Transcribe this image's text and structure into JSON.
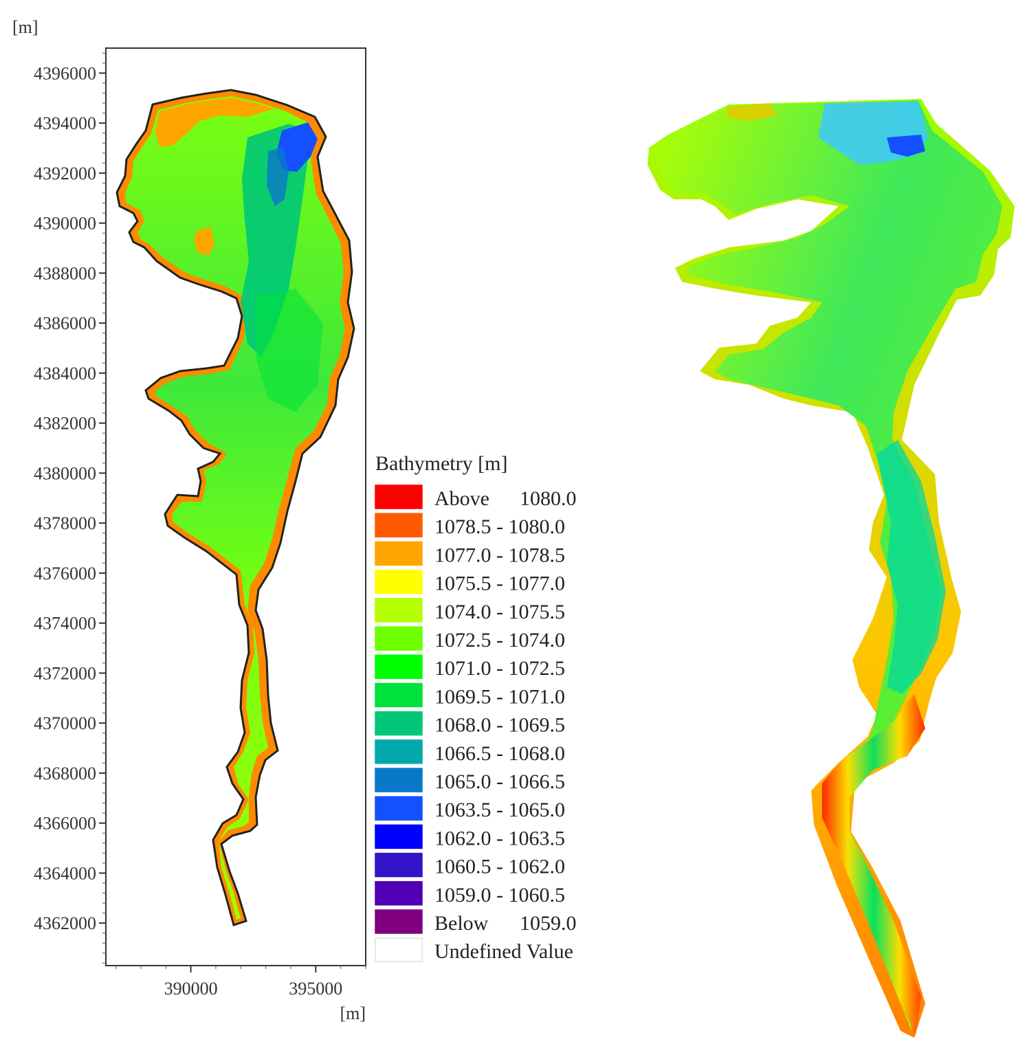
{
  "map2d": {
    "y_unit": "[m]",
    "x_unit": "[m]",
    "y_ticks": [
      {
        "value": 4396000,
        "label": "4396000"
      },
      {
        "value": 4394000,
        "label": "4394000"
      },
      {
        "value": 4392000,
        "label": "4392000"
      },
      {
        "value": 4390000,
        "label": "4390000"
      },
      {
        "value": 4388000,
        "label": "4388000"
      },
      {
        "value": 4386000,
        "label": "4386000"
      },
      {
        "value": 4384000,
        "label": "4384000"
      },
      {
        "value": 4382000,
        "label": "4382000"
      },
      {
        "value": 4380000,
        "label": "4380000"
      },
      {
        "value": 4378000,
        "label": "4378000"
      },
      {
        "value": 4376000,
        "label": "4376000"
      },
      {
        "value": 4374000,
        "label": "4374000"
      },
      {
        "value": 4372000,
        "label": "4372000"
      },
      {
        "value": 4370000,
        "label": "4370000"
      },
      {
        "value": 4368000,
        "label": "4368000"
      },
      {
        "value": 4366000,
        "label": "4366000"
      },
      {
        "value": 4364000,
        "label": "4364000"
      },
      {
        "value": 4362000,
        "label": "4362000"
      }
    ],
    "x_ticks": [
      {
        "value": 390000,
        "label": "390000"
      },
      {
        "value": 395000,
        "label": "395000"
      }
    ],
    "ylim": [
      4360300,
      4397000
    ],
    "xlim": [
      386600,
      397000
    ]
  },
  "legend": {
    "title": "Bathymetry [m]",
    "items": [
      {
        "label_a": "Above",
        "label_b": "1080.0",
        "color": "#ff0000"
      },
      {
        "label_a": "1078.5 - 1080.0",
        "label_b": "",
        "color": "#ff5a00"
      },
      {
        "label_a": "1077.0 - 1078.5",
        "label_b": "",
        "color": "#ffa500"
      },
      {
        "label_a": "1075.5 - 1077.0",
        "label_b": "",
        "color": "#ffff00"
      },
      {
        "label_a": "1074.0 - 1075.5",
        "label_b": "",
        "color": "#b4ff00"
      },
      {
        "label_a": "1072.5 - 1074.0",
        "label_b": "",
        "color": "#6eff00"
      },
      {
        "label_a": "1071.0 - 1072.5",
        "label_b": "",
        "color": "#00ff00"
      },
      {
        "label_a": "1069.5 - 1071.0",
        "label_b": "",
        "color": "#00e13c"
      },
      {
        "label_a": "1068.0 - 1069.5",
        "label_b": "",
        "color": "#00c878"
      },
      {
        "label_a": "1066.5 - 1068.0",
        "label_b": "",
        "color": "#00aaaa"
      },
      {
        "label_a": "1065.0 - 1066.5",
        "label_b": "",
        "color": "#0a78c8"
      },
      {
        "label_a": "1063.5 - 1065.0",
        "label_b": "",
        "color": "#1450ff"
      },
      {
        "label_a": "1062.0 - 1063.5",
        "label_b": "",
        "color": "#0000ff"
      },
      {
        "label_a": "1060.5 - 1062.0",
        "label_b": "",
        "color": "#3214c8"
      },
      {
        "label_a": "1059.0 - 1060.5",
        "label_b": "",
        "color": "#5000b4"
      },
      {
        "label_a": "Below",
        "label_b": "1059.0",
        "color": "#800080"
      },
      {
        "label_a": "Undefined Value",
        "label_b": "",
        "color": "#ffffff"
      }
    ]
  }
}
